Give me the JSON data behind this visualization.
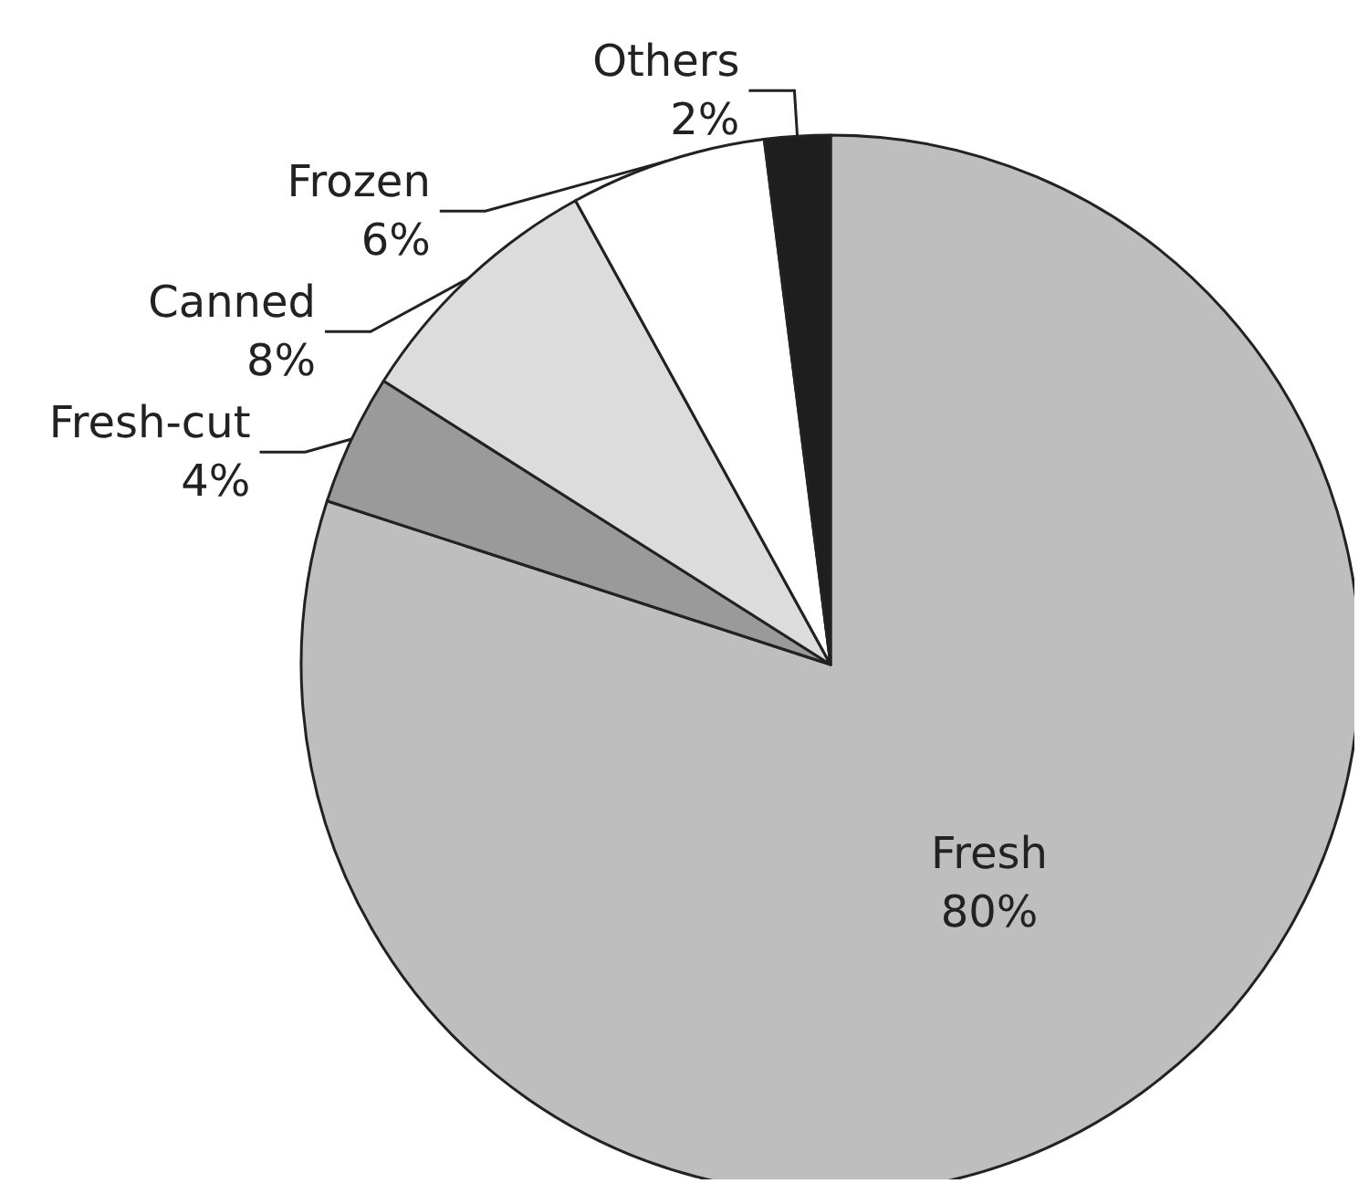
{
  "chart_data": {
    "type": "pie",
    "categories": [
      "Fresh",
      "Fresh-cut",
      "Canned",
      "Frozen",
      "Others"
    ],
    "values": [
      80,
      4,
      8,
      6,
      2
    ],
    "value_labels": [
      "80%",
      "4%",
      "8%",
      "6%",
      "2%"
    ],
    "colors": [
      "#bebebe",
      "#9a9a9a",
      "#dcdcdc",
      "#ffffff",
      "#1e1e1e"
    ],
    "legend": false
  }
}
